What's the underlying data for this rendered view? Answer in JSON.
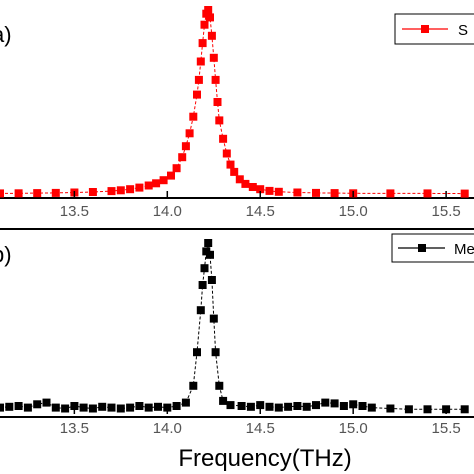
{
  "chart_data": [
    {
      "type": "scatter",
      "panel_label": "a)",
      "xlim": [
        13.1,
        15.65
      ],
      "ylim": [
        0,
        1.0
      ],
      "xticks": [
        13.5,
        14.0,
        14.5,
        15.0,
        15.5
      ],
      "xtick_labels": [
        "13.5",
        "14.0",
        "14.5",
        "15.0",
        "15.5"
      ],
      "legend_position": "top-right",
      "series": [
        {
          "name": "S",
          "color": "#ff0000",
          "marker": "square",
          "line": "dashed",
          "x": [
            13.1,
            13.2,
            13.3,
            13.4,
            13.5,
            13.6,
            13.7,
            13.75,
            13.8,
            13.85,
            13.9,
            13.94,
            13.98,
            14.02,
            14.05,
            14.08,
            14.1,
            14.12,
            14.14,
            14.16,
            14.17,
            14.18,
            14.19,
            14.2,
            14.21,
            14.22,
            14.23,
            14.24,
            14.25,
            14.26,
            14.27,
            14.28,
            14.3,
            14.32,
            14.34,
            14.36,
            14.39,
            14.42,
            14.46,
            14.5,
            14.55,
            14.6,
            14.7,
            14.8,
            14.9,
            15.0,
            15.2,
            15.4,
            15.6
          ],
          "y": [
            0.003,
            0.004,
            0.005,
            0.006,
            0.008,
            0.011,
            0.016,
            0.02,
            0.026,
            0.035,
            0.046,
            0.058,
            0.075,
            0.1,
            0.14,
            0.2,
            0.26,
            0.33,
            0.42,
            0.54,
            0.62,
            0.72,
            0.82,
            0.92,
            0.98,
            1.0,
            0.96,
            0.86,
            0.74,
            0.62,
            0.5,
            0.4,
            0.3,
            0.22,
            0.16,
            0.12,
            0.08,
            0.055,
            0.038,
            0.026,
            0.017,
            0.012,
            0.008,
            0.006,
            0.005,
            0.004,
            0.003,
            0.003,
            0.002
          ]
        }
      ]
    },
    {
      "type": "scatter",
      "panel_label": "b)",
      "xlim": [
        13.1,
        15.65
      ],
      "ylim": [
        0,
        1.0
      ],
      "xticks": [
        13.5,
        14.0,
        14.5,
        15.0,
        15.5
      ],
      "xtick_labels": [
        "13.5",
        "14.0",
        "14.5",
        "15.0",
        "15.5"
      ],
      "xlabel": "Frequency(THz)",
      "legend_position": "top-right",
      "series": [
        {
          "name": "Me",
          "color": "#000000",
          "marker": "square",
          "line": "dashed",
          "x": [
            13.1,
            13.15,
            13.2,
            13.25,
            13.3,
            13.35,
            13.4,
            13.45,
            13.5,
            13.55,
            13.6,
            13.65,
            13.7,
            13.75,
            13.8,
            13.85,
            13.9,
            13.95,
            14.0,
            14.05,
            14.1,
            14.14,
            14.16,
            14.18,
            14.19,
            14.2,
            14.21,
            14.22,
            14.23,
            14.24,
            14.25,
            14.26,
            14.28,
            14.3,
            14.34,
            14.4,
            14.45,
            14.5,
            14.55,
            14.6,
            14.65,
            14.7,
            14.75,
            14.8,
            14.85,
            14.9,
            14.95,
            15.0,
            15.05,
            15.1,
            15.2,
            15.3,
            15.4,
            15.5,
            15.6
          ],
          "y": [
            0.02,
            0.025,
            0.03,
            0.02,
            0.04,
            0.05,
            0.02,
            0.015,
            0.03,
            0.02,
            0.015,
            0.025,
            0.02,
            0.015,
            0.02,
            0.03,
            0.02,
            0.025,
            0.02,
            0.03,
            0.05,
            0.15,
            0.35,
            0.6,
            0.75,
            0.85,
            0.95,
            1.0,
            0.93,
            0.78,
            0.55,
            0.35,
            0.15,
            0.06,
            0.035,
            0.03,
            0.025,
            0.035,
            0.025,
            0.02,
            0.025,
            0.03,
            0.025,
            0.035,
            0.05,
            0.045,
            0.03,
            0.04,
            0.03,
            0.02,
            0.015,
            0.01,
            0.01,
            0.01,
            0.01
          ]
        }
      ]
    }
  ]
}
